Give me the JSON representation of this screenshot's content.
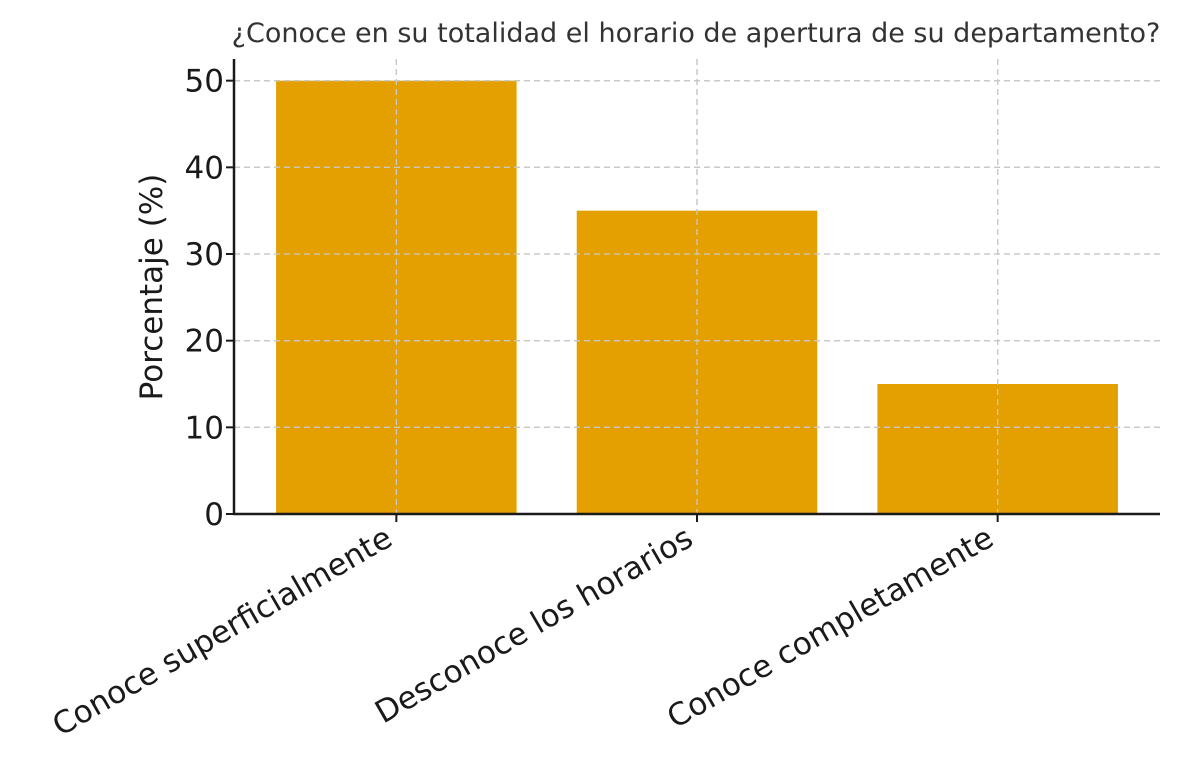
{
  "chart_data": {
    "type": "bar",
    "title": "¿Conoce en su totalidad el horario de apertura de su departamento?",
    "xlabel": "",
    "ylabel": "Porcentaje (%)",
    "categories": [
      "Conoce superficialmente",
      "Desconoce los horarios",
      "Conoce completamente"
    ],
    "values": [
      50,
      35,
      15
    ],
    "ylim": [
      0,
      52.5
    ],
    "yticks": [
      0,
      10,
      20,
      30,
      40,
      50
    ],
    "grid": true,
    "bar_color": "#E3A000"
  }
}
